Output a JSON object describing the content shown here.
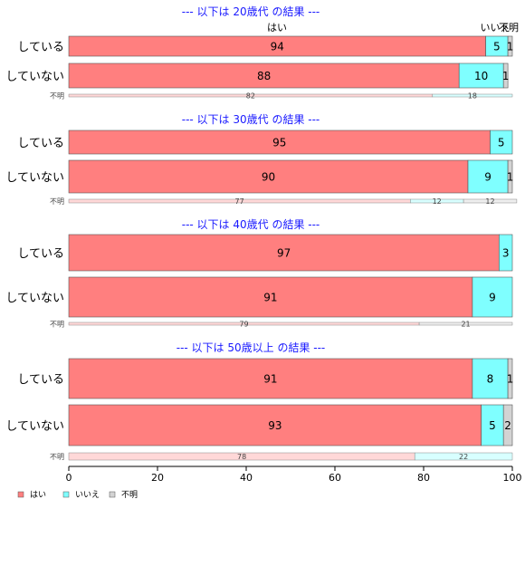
{
  "chart_data": {
    "type": "bar",
    "orientation": "horizontal",
    "stacked": true,
    "xlim": [
      0,
      100
    ],
    "xticks": [
      0,
      20,
      40,
      60,
      80,
      100
    ],
    "legend": {
      "position": "bottom-left",
      "entries": [
        {
          "label": "はい",
          "color": "#ff7f7f"
        },
        {
          "label": "いいえ",
          "color": "#7fffff"
        },
        {
          "label": "不明",
          "color": "#d3d3d3"
        }
      ]
    },
    "column_headers": [
      "はい",
      "いいえ",
      "不明"
    ],
    "panels": [
      {
        "title": "--- 以下は 20歳代 の結果 ---",
        "rows": [
          {
            "label": "している",
            "values": [
              94,
              5,
              1
            ]
          },
          {
            "label": "していない",
            "values": [
              88,
              10,
              1
            ]
          }
        ],
        "unknown": {
          "label": "不明",
          "values": [
            82,
            18,
            0
          ]
        }
      },
      {
        "title": "--- 以下は 30歳代 の結果 ---",
        "rows": [
          {
            "label": "している",
            "values": [
              95,
              5,
              0
            ]
          },
          {
            "label": "していない",
            "values": [
              90,
              9,
              1
            ]
          }
        ],
        "unknown": {
          "label": "不明",
          "values": [
            77,
            12,
            12
          ]
        }
      },
      {
        "title": "--- 以下は 40歳代 の結果 ---",
        "rows": [
          {
            "label": "している",
            "values": [
              97,
              3,
              0
            ]
          },
          {
            "label": "していない",
            "values": [
              91,
              9,
              0
            ]
          }
        ],
        "unknown": {
          "label": "不明",
          "values": [
            79,
            0,
            21
          ]
        }
      },
      {
        "title": "--- 以下は 50歳以上 の結果 ---",
        "rows": [
          {
            "label": "している",
            "values": [
              91,
              8,
              1
            ]
          },
          {
            "label": "していない",
            "values": [
              93,
              5,
              2
            ]
          }
        ],
        "unknown": {
          "label": "不明",
          "values": [
            78,
            22,
            0
          ]
        }
      }
    ]
  }
}
